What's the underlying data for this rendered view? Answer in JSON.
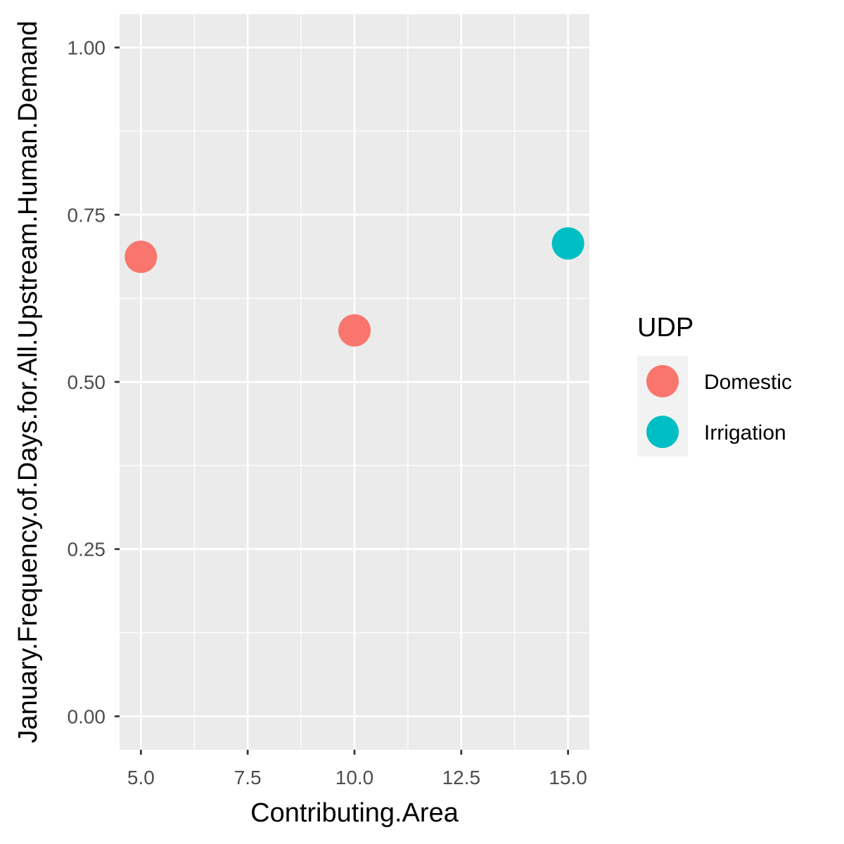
{
  "chart_data": {
    "type": "scatter",
    "xlabel": "Contributing.Area",
    "ylabel": "January.Frequency.of.Days.for.All.Upstream.Human.Demand",
    "xlim": [
      4.5,
      15.5
    ],
    "ylim": [
      -0.05,
      1.05
    ],
    "x_ticks": [
      5.0,
      7.5,
      10.0,
      12.5,
      15.0
    ],
    "x_tick_labels": [
      "5.0",
      "7.5",
      "10.0",
      "12.5",
      "15.0"
    ],
    "y_ticks": [
      0.0,
      0.25,
      0.5,
      0.75,
      1.0
    ],
    "y_tick_labels": [
      "0.00",
      "0.25",
      "0.50",
      "0.75",
      "1.00"
    ],
    "grid": true,
    "legend": {
      "title": "UDP",
      "position": "right",
      "entries": [
        {
          "label": "Domestic",
          "color": "#F8766D"
        },
        {
          "label": "Irrigation",
          "color": "#00BFC4"
        }
      ]
    },
    "series": [
      {
        "name": "Domestic",
        "color": "#F8766D",
        "points": [
          {
            "x": 5.0,
            "y": 0.687
          },
          {
            "x": 10.0,
            "y": 0.577
          }
        ]
      },
      {
        "name": "Irrigation",
        "color": "#00BFC4",
        "points": [
          {
            "x": 15.0,
            "y": 0.707
          }
        ]
      }
    ]
  }
}
